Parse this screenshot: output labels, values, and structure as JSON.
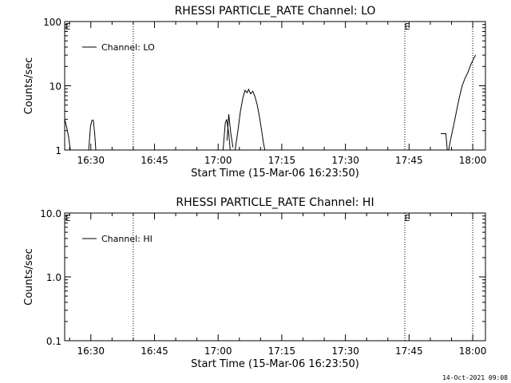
{
  "footer": {
    "timestamp": "14-Oct-2021 09:08"
  },
  "chart_data": [
    {
      "type": "line",
      "title": "RHESSI PARTICLE_RATE Channel: LO",
      "xlabel": "Start Time (15-Mar-06 16:23:50)",
      "ylabel": "Counts/sec",
      "x_unit": "HH:MM (15-Mar-06)",
      "xlim": [
        "16:23:50",
        "18:03"
      ],
      "ylim": [
        1,
        100
      ],
      "yscale": "log",
      "x_ticks": [
        "16:30",
        "16:45",
        "17:00",
        "17:15",
        "17:30",
        "17:45",
        "18:00"
      ],
      "y_ticks": [
        "1",
        "10",
        "100"
      ],
      "legend": {
        "entries": [
          "Channel: LO"
        ],
        "placement": "top-left"
      },
      "grid": false,
      "event_markers": [
        {
          "x": "16:40",
          "label": ""
        },
        {
          "x": "17:44",
          "label": "E"
        },
        {
          "x": "18:00",
          "label": ""
        }
      ],
      "left_edge_marker_label": "E",
      "segments": [
        [
          [
            "16:23:55",
            2.9
          ],
          [
            "16:24:20",
            2.2
          ],
          [
            "16:24:45",
            1.6
          ],
          [
            "16:25:10",
            1.0
          ]
        ],
        [
          [
            "16:29:30",
            1.0
          ],
          [
            "16:29:55",
            2.3
          ],
          [
            "16:30:15",
            2.9
          ],
          [
            "16:30:35",
            2.9
          ],
          [
            "16:30:55",
            1.8
          ],
          [
            "16:31:10",
            1.0
          ]
        ],
        [
          [
            "17:01:10",
            1.0
          ],
          [
            "17:01:40",
            2.6
          ],
          [
            "17:02:00",
            3.0
          ],
          [
            "17:02:30",
            1.8
          ],
          [
            "17:02:50",
            1.0
          ]
        ],
        [
          [
            "17:02:05",
            1.4
          ],
          [
            "17:02:30",
            3.6
          ],
          [
            "17:03:00",
            1.8
          ],
          [
            "17:03:30",
            1.1
          ]
        ],
        [
          [
            "17:04:00",
            1.0
          ],
          [
            "17:04:40",
            2.0
          ],
          [
            "17:05:15",
            4.0
          ],
          [
            "17:05:50",
            6.5
          ],
          [
            "17:06:20",
            8.5
          ],
          [
            "17:06:50",
            7.8
          ],
          [
            "17:07:10",
            8.8
          ],
          [
            "17:07:40",
            7.5
          ],
          [
            "17:08:10",
            8.2
          ],
          [
            "17:08:40",
            6.8
          ],
          [
            "17:09:10",
            5.2
          ],
          [
            "17:09:40",
            3.5
          ],
          [
            "17:10:10",
            2.2
          ],
          [
            "17:10:40",
            1.3
          ],
          [
            "17:11:00",
            1.0
          ]
        ],
        [
          [
            "17:52:30",
            1.8
          ],
          [
            "17:53:10",
            1.8
          ],
          [
            "17:53:40",
            1.8
          ],
          [
            "17:54:00",
            1.0
          ]
        ],
        [
          [
            "17:54:20",
            1.0
          ],
          [
            "17:54:50",
            1.5
          ],
          [
            "17:55:30",
            2.4
          ],
          [
            "17:56:10",
            4.0
          ],
          [
            "17:56:50",
            6.5
          ],
          [
            "17:57:30",
            10.0
          ],
          [
            "17:58:10",
            13.0
          ],
          [
            "17:58:50",
            16.0
          ],
          [
            "17:59:30",
            21.0
          ],
          [
            "18:00:10",
            26.0
          ],
          [
            "18:00:40",
            30.0
          ]
        ]
      ]
    },
    {
      "type": "line",
      "title": "RHESSI PARTICLE_RATE Channel: HI",
      "xlabel": "Start Time (15-Mar-06 16:23:50)",
      "ylabel": "Counts/sec",
      "x_unit": "HH:MM (15-Mar-06)",
      "xlim": [
        "16:23:50",
        "18:03"
      ],
      "ylim": [
        0.1,
        10
      ],
      "yscale": "log",
      "x_ticks": [
        "16:30",
        "16:45",
        "17:00",
        "17:15",
        "17:30",
        "17:45",
        "18:00"
      ],
      "y_ticks": [
        "0.1",
        "1.0",
        "10.0"
      ],
      "legend": {
        "entries": [
          "Channel: HI"
        ],
        "placement": "top-left"
      },
      "grid": false,
      "event_markers": [
        {
          "x": "16:40",
          "label": ""
        },
        {
          "x": "17:44",
          "label": "E"
        },
        {
          "x": "18:00",
          "label": ""
        }
      ],
      "left_edge_marker_label": "E",
      "segments": []
    }
  ]
}
